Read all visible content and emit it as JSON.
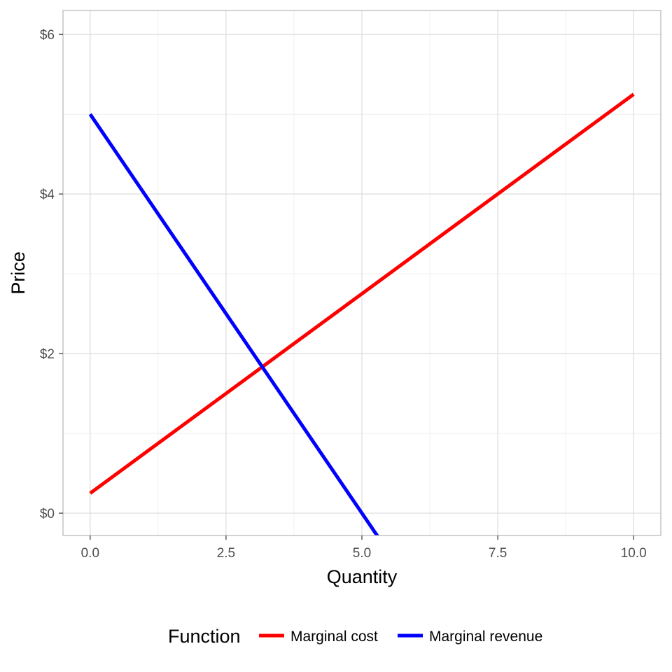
{
  "chart_data": {
    "type": "line",
    "xlabel": "Quantity",
    "ylabel": "Price",
    "xlim": [
      -0.5,
      10.5
    ],
    "ylim": [
      -0.28,
      6.3
    ],
    "x_ticks": [
      0,
      2.5,
      5,
      7.5,
      10
    ],
    "x_tick_labels": [
      "0.0",
      "2.5",
      "5.0",
      "7.5",
      "10.0"
    ],
    "y_ticks": [
      0,
      2,
      4,
      6
    ],
    "y_tick_labels": [
      "$0",
      "$2",
      "$4",
      "$6"
    ],
    "grid": true,
    "legend": {
      "title": "Function",
      "position": "bottom"
    },
    "series": [
      {
        "name": "Marginal cost",
        "color": "#ff0000",
        "x": [
          0,
          10
        ],
        "y": [
          0.25,
          5.25
        ]
      },
      {
        "name": "Marginal revenue",
        "color": "#0000ff",
        "x": [
          0,
          5.31
        ],
        "y": [
          5.0,
          -0.31
        ]
      }
    ]
  }
}
